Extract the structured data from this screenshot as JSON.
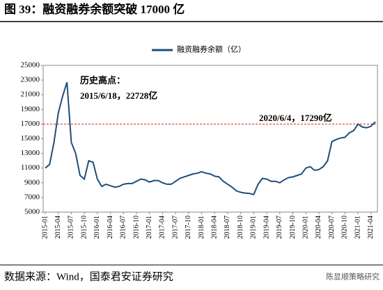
{
  "chart_data": {
    "type": "line",
    "title": "图 39：融资融券余额突破 17000 亿",
    "source": "数据来源：Wind，国泰君安证券研究",
    "watermark": "陈显顺策略研究",
    "annotations": [
      "历史高点：",
      "2015/6/18，22728亿",
      "2020/6/4，17290亿"
    ],
    "reference_line": {
      "value": 17000,
      "color": "#e02020"
    },
    "categories": [
      "2015-01",
      null,
      null,
      "2015-04",
      null,
      null,
      "2015-07",
      null,
      null,
      "2015-10",
      null,
      null,
      "2016-01",
      null,
      null,
      "2016-04",
      null,
      null,
      "2016-07",
      null,
      null,
      "2016-10",
      null,
      null,
      "2017-01",
      null,
      null,
      "2017-04",
      null,
      null,
      "2017-07",
      null,
      null,
      "2017-10",
      null,
      null,
      "2018-01",
      null,
      null,
      "2018-04",
      null,
      null,
      "2018-07",
      null,
      null,
      "2018-10",
      null,
      null,
      "2019-01",
      null,
      null,
      "2019-04",
      null,
      null,
      "2019-07",
      null,
      null,
      "2019-10",
      null,
      null,
      "2020-01",
      null,
      null,
      "2020-04",
      null,
      null,
      "2020-07",
      null,
      null,
      "2020-10",
      null,
      null,
      "2021-01",
      null,
      null,
      "2021-04",
      null
    ],
    "series": [
      {
        "name": "融资融券余额（亿）",
        "color": "#1f4e79",
        "values": [
          11000,
          11500,
          14500,
          18500,
          20800,
          22700,
          14500,
          13000,
          10000,
          9500,
          12000,
          11800,
          9500,
          8500,
          8800,
          8600,
          8400,
          8500,
          8800,
          8900,
          8900,
          9200,
          9500,
          9400,
          9100,
          9300,
          9300,
          9000,
          8800,
          8800,
          9200,
          9600,
          9800,
          10000,
          10200,
          10300,
          10500,
          10300,
          10200,
          9900,
          9800,
          9200,
          8800,
          8400,
          7900,
          7700,
          7600,
          7550,
          7400,
          8800,
          9600,
          9500,
          9200,
          9200,
          9000,
          9400,
          9700,
          9800,
          10000,
          10200,
          11000,
          11200,
          10700,
          10800,
          11200,
          12000,
          14600,
          14900,
          15100,
          15200,
          15800,
          16100,
          17000,
          16600,
          16500,
          16700,
          17300
        ]
      }
    ],
    "ylim": [
      5000,
      25000
    ],
    "yticks": [
      5000,
      7000,
      9000,
      11000,
      13000,
      15000,
      17000,
      19000,
      21000,
      23000,
      25000
    ]
  }
}
